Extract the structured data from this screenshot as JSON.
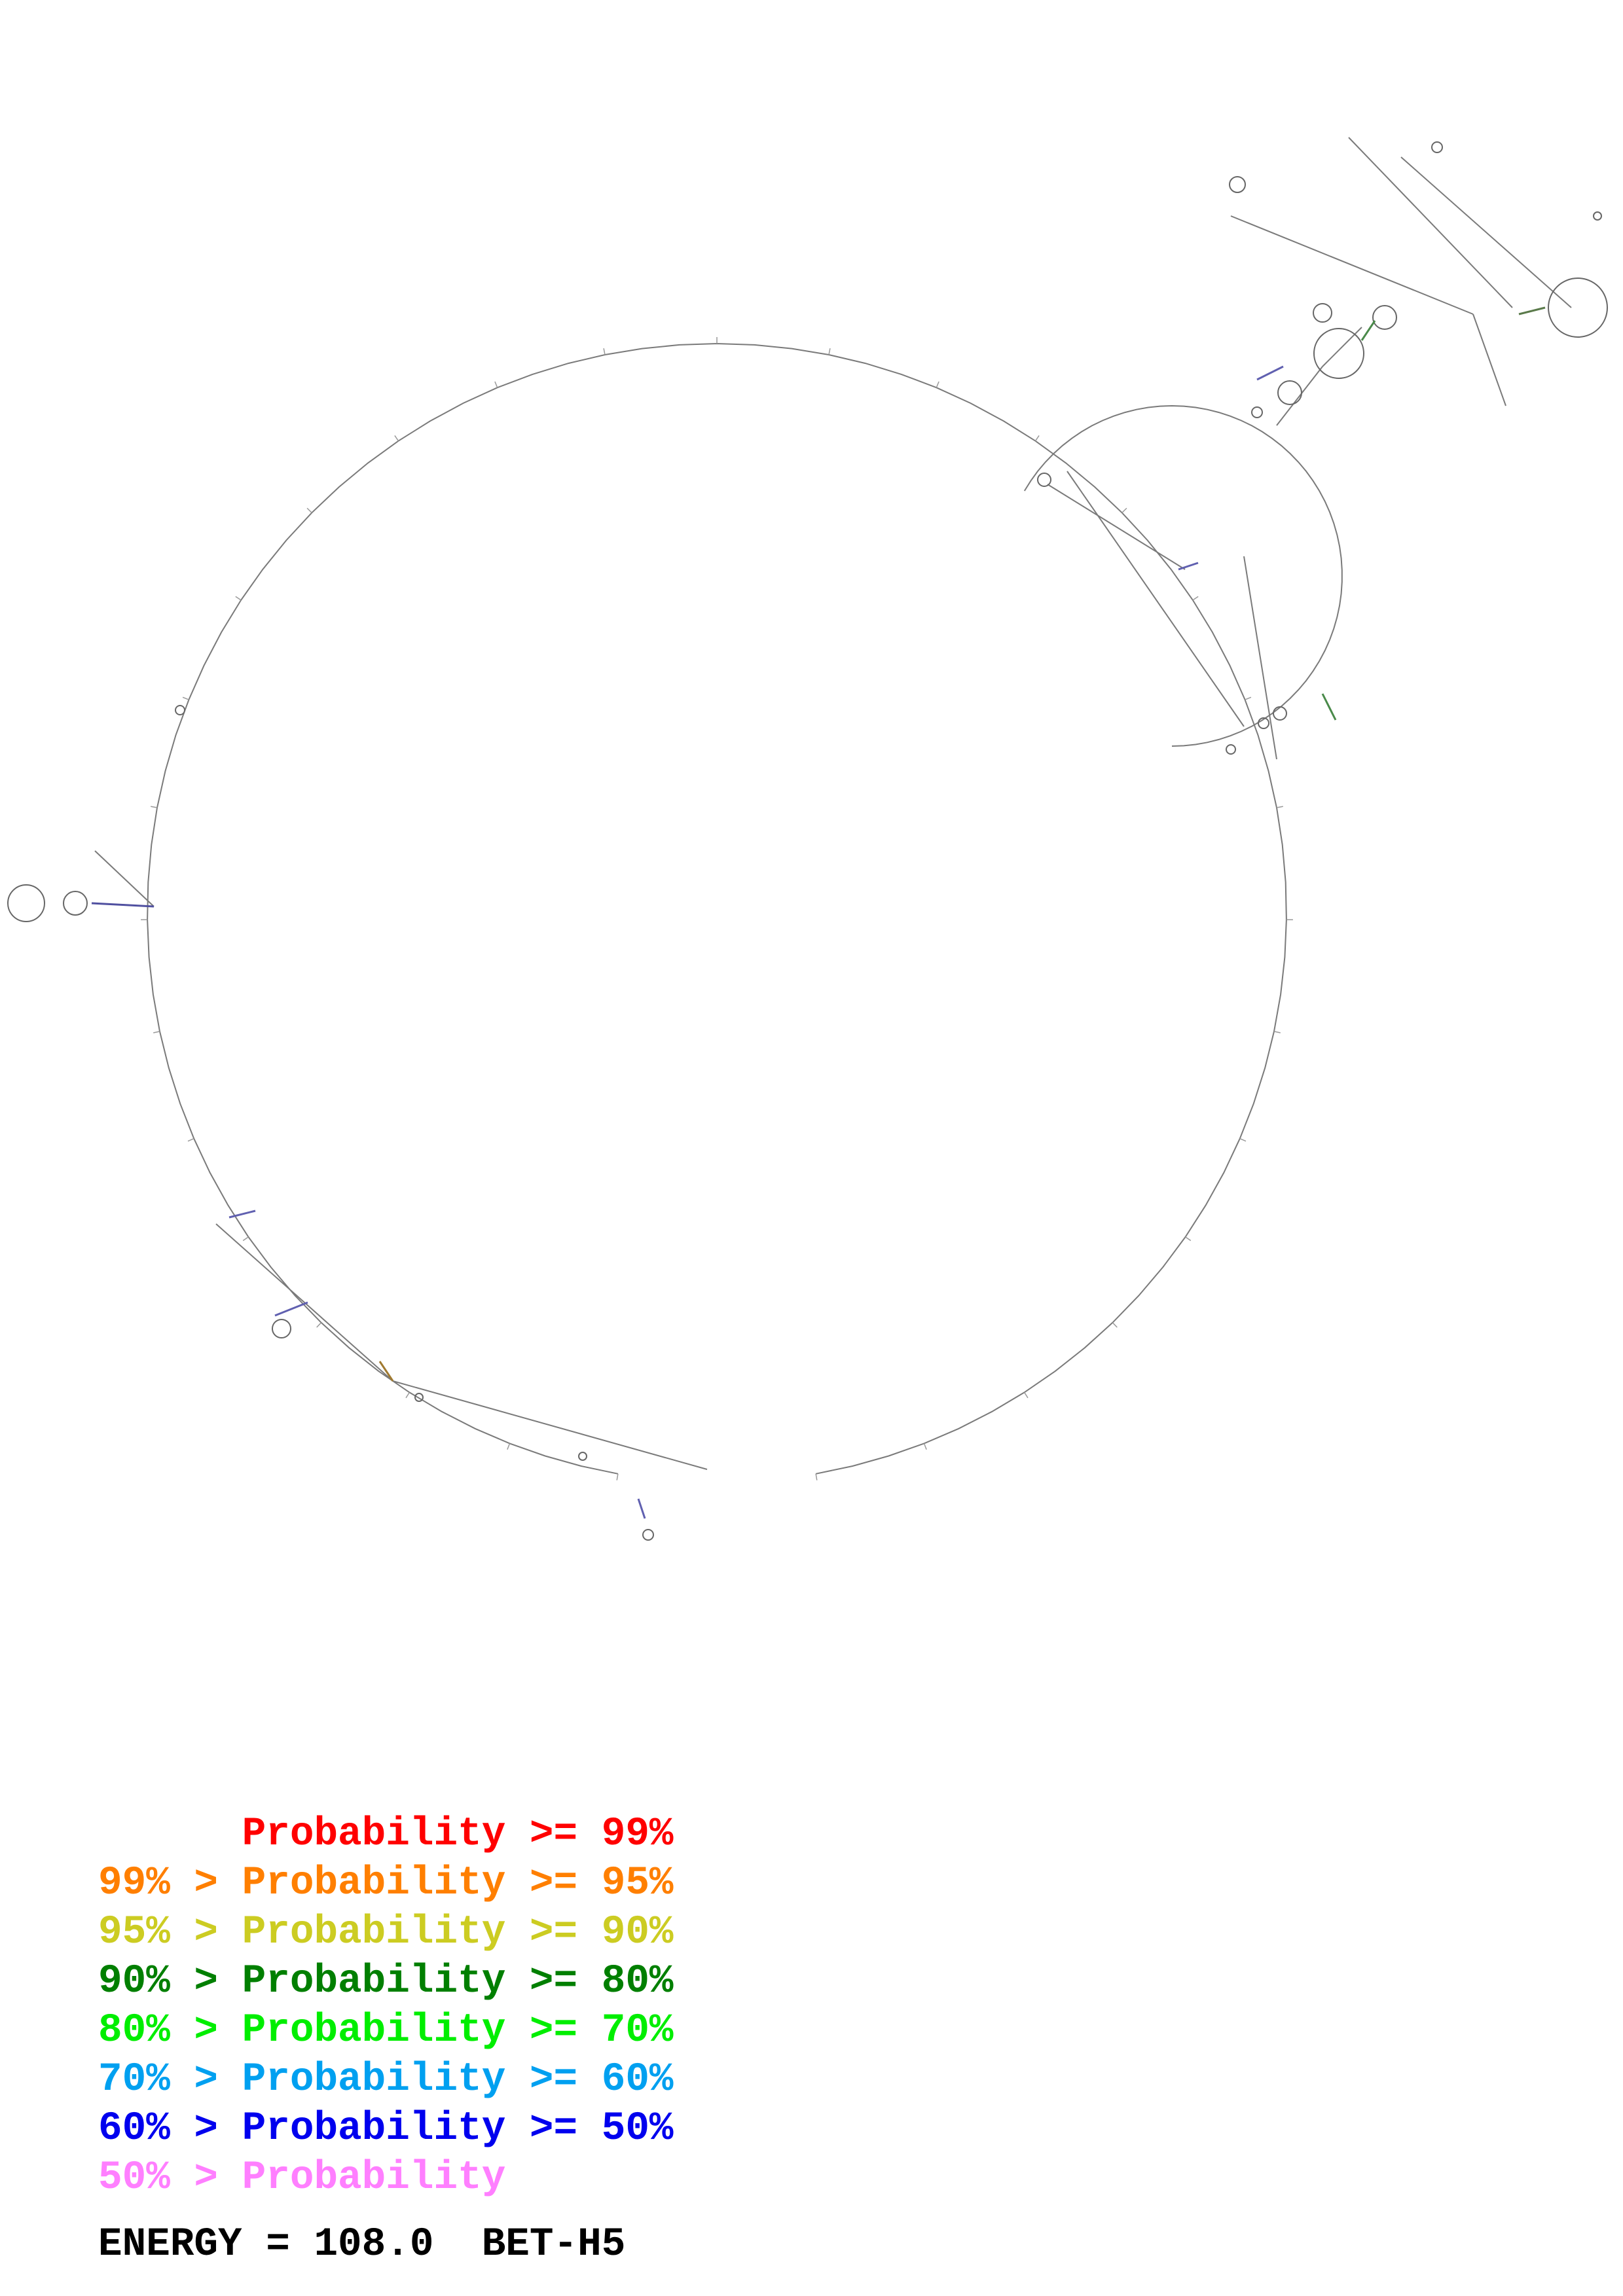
{
  "legend": {
    "entries": [
      {
        "label": "      Probability >= 99%",
        "color": "#ff0000"
      },
      {
        "label": "99% > Probability >= 95%",
        "color": "#ff7f00"
      },
      {
        "label": "95% > Probability >= 90%",
        "color": "#cccc22"
      },
      {
        "label": "90% > Probability >= 80%",
        "color": "#007f00"
      },
      {
        "label": "80% > Probability >= 70%",
        "color": "#00ee00"
      },
      {
        "label": "70% > Probability >= 60%",
        "color": "#00a0f0"
      },
      {
        "label": "60% > Probability >= 50%",
        "color": "#0000ee"
      },
      {
        "label": "50% > Probability",
        "color": "#ff7fff"
      }
    ]
  },
  "footer": {
    "energy_label": "ENERGY = 108.0",
    "structure_name": "BET-H5"
  },
  "colors": {
    "backbone": "#7a7a7a",
    "pair_default": "#8080b0"
  }
}
